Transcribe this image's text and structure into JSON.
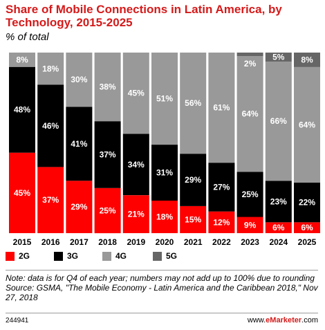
{
  "title": "Share of Mobile Connections in Latin America, by Technology, 2015-2025",
  "subtitle": "% of total",
  "colors": {
    "2G": "#fe0000",
    "3G": "#000000",
    "4G": "#999999",
    "5G": "#666666",
    "title": "#d51a1a"
  },
  "chart_data": {
    "type": "bar",
    "stacked": true,
    "categories": [
      "2015",
      "2016",
      "2017",
      "2018",
      "2019",
      "2020",
      "2021",
      "2022",
      "2023",
      "2024",
      "2025"
    ],
    "series": [
      {
        "name": "2G",
        "values": [
          45,
          37,
          29,
          25,
          21,
          18,
          15,
          12,
          9,
          6,
          6
        ],
        "labels": [
          "45%",
          "37%",
          "29%",
          "25%",
          "21%",
          "18%",
          "15%",
          "12%",
          "9%",
          "6%",
          "6%"
        ]
      },
      {
        "name": "3G",
        "values": [
          48,
          46,
          41,
          37,
          34,
          31,
          29,
          27,
          25,
          23,
          22
        ],
        "labels": [
          "48%",
          "46%",
          "41%",
          "37%",
          "34%",
          "31%",
          "29%",
          "27%",
          "25%",
          "23%",
          "22%"
        ]
      },
      {
        "name": "4G",
        "values": [
          8,
          18,
          30,
          38,
          45,
          51,
          56,
          61,
          64,
          66,
          64
        ],
        "labels": [
          "8%",
          "18%",
          "30%",
          "38%",
          "45%",
          "51%",
          "56%",
          "61%",
          "64%",
          "66%",
          "64%"
        ]
      },
      {
        "name": "5G",
        "values": [
          0,
          0,
          0,
          0,
          0,
          0,
          0,
          0,
          2,
          5,
          8
        ],
        "labels": [
          "",
          "",
          "",
          "",
          "",
          "",
          "",
          "",
          "2%",
          "5%",
          "8%"
        ]
      }
    ],
    "ylim": [
      0,
      100
    ],
    "legend_position": "bottom-left",
    "grid": false
  },
  "legend": [
    {
      "label": "2G",
      "color": "#fe0000"
    },
    {
      "label": "3G",
      "color": "#000000"
    },
    {
      "label": "4G",
      "color": "#999999"
    },
    {
      "label": "5G",
      "color": "#666666"
    }
  ],
  "notes": {
    "note": "Note: data is for Q4 of each year; numbers may not add up to 100% due to rounding",
    "source": "Source: GSMA, \"The Mobile Economy - Latin America and the Caribbean 2018,\" Nov 27, 2018"
  },
  "footer": {
    "chart_id": "244941",
    "brand_prefix": "www.",
    "brand_name": "eMarketer",
    "brand_suffix": ".com"
  }
}
